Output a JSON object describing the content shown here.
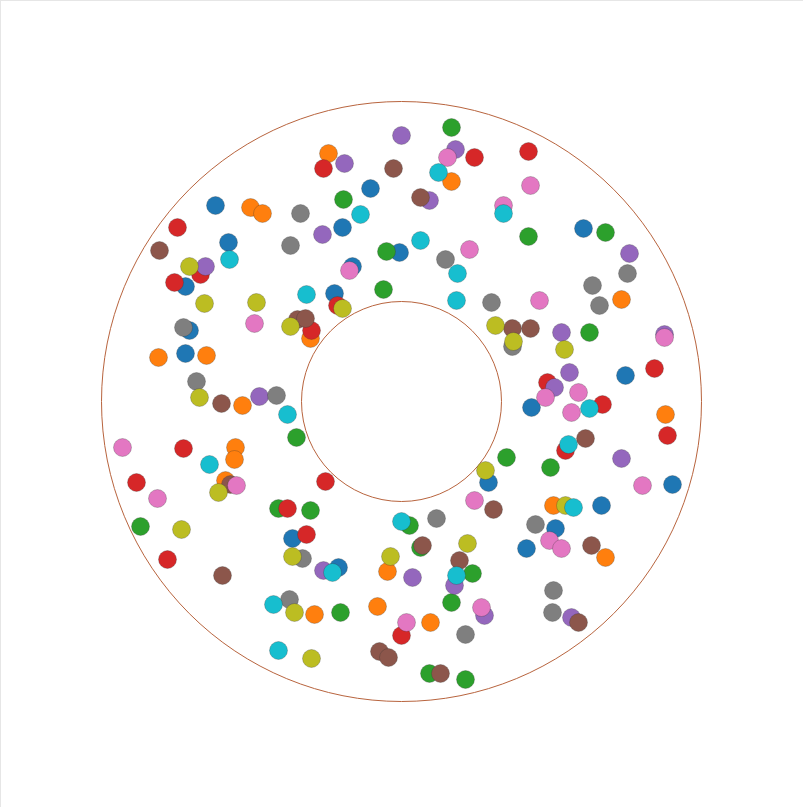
{
  "chart_data": {
    "type": "scatter",
    "xlim": [
      -401,
      402
    ],
    "ylim": [
      -406,
      401
    ],
    "xticks": [],
    "yticks": [],
    "tick_labels": false,
    "grid": false,
    "inner_radius": 100,
    "outer_radius": 300,
    "series": [
      {
        "color": "#1f77b4",
        "marker": "circle",
        "x": [
          -31,
          -59,
          -186,
          -173,
          -216,
          -212,
          -216,
          -67,
          -2,
          182,
          224,
          130,
          87,
          200,
          271,
          154,
          125,
          -109,
          -63,
          -49
        ],
        "y": [
          213,
          174,
          196,
          159,
          115,
          71,
          48,
          108,
          149,
          173,
          26,
          -6,
          -81,
          -104,
          -83,
          -127,
          -147,
          -137,
          -166,
          135
        ]
      },
      {
        "color": "#ff7f0e",
        "marker": "circle",
        "x": [
          -73,
          50,
          -151,
          -139,
          -243,
          -195,
          -159,
          -166,
          -167,
          -176,
          -91,
          220,
          264,
          152,
          204,
          -14,
          -24,
          29,
          -87
        ],
        "y": [
          248,
          220,
          194,
          188,
          44,
          46,
          -4,
          -46,
          -58,
          -79,
          63,
          102,
          -13,
          -104,
          -156,
          -170,
          -205,
          -221,
          -213
        ]
      },
      {
        "color": "#2ca02c",
        "marker": "circle",
        "x": [
          50,
          -58,
          -15,
          -18,
          127,
          204,
          188,
          -105,
          105,
          149,
          -123,
          -91,
          -261,
          8,
          19,
          71,
          50,
          -61,
          28,
          64
        ],
        "y": [
          274,
          202,
          150,
          112,
          165,
          169,
          69,
          -36,
          -56,
          -66,
          -107,
          -109,
          -125,
          -124,
          -146,
          -172,
          -201,
          -211,
          -272,
          -278
        ]
      },
      {
        "color": "#d62728",
        "marker": "circle",
        "x": [
          -78,
          73,
          127,
          -224,
          -227,
          -201,
          -64,
          146,
          201,
          253,
          266,
          164,
          -218,
          -265,
          -234,
          -76,
          -114,
          -95,
          0,
          -90
        ],
        "y": [
          233,
          244,
          250,
          174,
          119,
          127,
          96,
          19,
          -3,
          33,
          -34,
          -49,
          -47,
          -81,
          -158,
          -80,
          -107,
          -133,
          -234,
          71
        ]
      },
      {
        "color": "#9467bd",
        "marker": "circle",
        "x": [
          0,
          -57,
          54,
          28,
          -79,
          228,
          263,
          160,
          168,
          153,
          -142,
          220,
          -78,
          11,
          83,
          170,
          53,
          -196
        ],
        "y": [
          266,
          238,
          252,
          201,
          167,
          148,
          67,
          69,
          29,
          14,
          5,
          -57,
          -169,
          -176,
          -214,
          -216,
          -184,
          135
        ]
      },
      {
        "color": "#8c564b",
        "marker": "circle",
        "x": [
          -8,
          19,
          -242,
          -104,
          -96,
          111,
          129,
          -180,
          184,
          -171,
          92,
          21,
          58,
          190,
          -179,
          -22,
          -13,
          39,
          177
        ],
        "y": [
          233,
          204,
          151,
          82,
          83,
          73,
          73,
          -2,
          -37,
          -83,
          -108,
          -144,
          -159,
          -144,
          -174,
          -250,
          -256,
          -272,
          -221
        ]
      },
      {
        "color": "#e377c2",
        "marker": "circle",
        "x": [
          46,
          129,
          102,
          68,
          -52,
          138,
          -147,
          177,
          170,
          144,
          -279,
          -244,
          -165,
          73,
          148,
          160,
          241,
          5,
          80,
          263
        ],
        "y": [
          244,
          216,
          196,
          152,
          131,
          101,
          78,
          9,
          -11,
          4,
          -46,
          -97,
          -84,
          -99,
          -139,
          -147,
          -84,
          -221,
          -206,
          64
        ]
      },
      {
        "color": "#7f7f7f",
        "marker": "circle",
        "x": [
          -101,
          -111,
          44,
          191,
          226,
          198,
          90,
          111,
          -218,
          -205,
          -125,
          35,
          134,
          -99,
          -112,
          152,
          151,
          64
        ],
        "y": [
          188,
          156,
          142,
          116,
          128,
          96,
          99,
          55,
          74,
          20,
          6,
          -117,
          -123,
          -157,
          -198,
          -189,
          -211,
          -233
        ]
      },
      {
        "color": "#bcbd22",
        "marker": "circle",
        "x": [
          -212,
          -197,
          -145,
          -111,
          -59,
          94,
          112,
          163,
          -202,
          -183,
          -220,
          84,
          164,
          66,
          -11,
          -109,
          -107,
          -90
        ],
        "y": [
          135,
          98,
          99,
          75,
          93,
          76,
          60,
          52,
          4,
          -91,
          -128,
          -69,
          -104,
          -142,
          -155,
          -155,
          -211,
          -257
        ]
      },
      {
        "color": "#17becf",
        "marker": "circle",
        "x": [
          37,
          -41,
          102,
          -172,
          19,
          56,
          55,
          -95,
          -114,
          -192,
          188,
          167,
          172,
          0,
          -69,
          55,
          -128,
          -123
        ],
        "y": [
          229,
          187,
          188,
          142,
          161,
          128,
          101,
          107,
          -13,
          -63,
          -7,
          -43,
          -106,
          -120,
          -171,
          -174,
          -203,
          -249
        ]
      }
    ]
  }
}
